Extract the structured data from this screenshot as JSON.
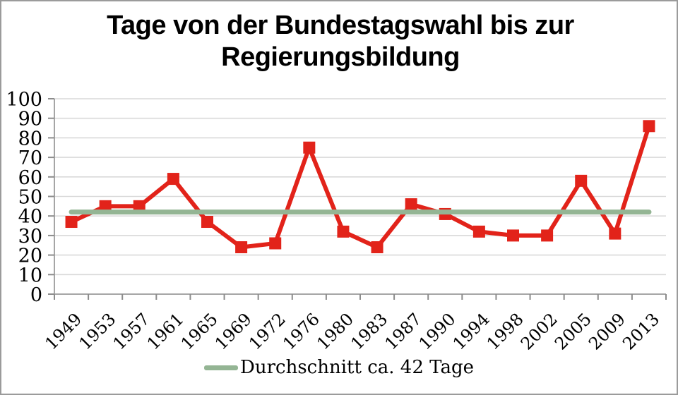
{
  "title": "Tage von der Bundestagswahl bis zur Regierungsbildung",
  "legend": {
    "average_label": "Durchschnitt ca. 42 Tage"
  },
  "colors": {
    "series": "#e2231a",
    "average": "#94b594",
    "gridline": "#d9d9d9",
    "axis": "#a6a6a6",
    "tick": "#8c8c8c",
    "text": "#000000",
    "frame": "#9b9b9b"
  },
  "chart_data": {
    "type": "line",
    "title": "Tage von der Bundestagswahl bis zur Regierungsbildung",
    "categories": [
      "1949",
      "1953",
      "1957",
      "1961",
      "1965",
      "1969",
      "1972",
      "1976",
      "1980",
      "1983",
      "1987",
      "1990",
      "1994",
      "1998",
      "2002",
      "2005",
      "2009",
      "2013"
    ],
    "series": [
      {
        "name": "",
        "style": "line-with-square-markers",
        "color": "#e2231a",
        "values": [
          37,
          45,
          45,
          59,
          37,
          24,
          26,
          75,
          32,
          24,
          46,
          41,
          32,
          30,
          30,
          58,
          31,
          86
        ]
      },
      {
        "name": "Durchschnitt ca. 42 Tage",
        "style": "reference-line",
        "color": "#94b594",
        "value": 42
      }
    ],
    "xlabel": "",
    "ylabel": "",
    "ylim": [
      0,
      100
    ],
    "ytick_step": 10,
    "ytick_labels": [
      "0",
      "10",
      "20",
      "30",
      "40",
      "50",
      "60",
      "70",
      "80",
      "90",
      "100"
    ],
    "grid": true,
    "legend_position": "bottom",
    "legend_entries": [
      "Durchschnitt ca. 42 Tage"
    ]
  }
}
